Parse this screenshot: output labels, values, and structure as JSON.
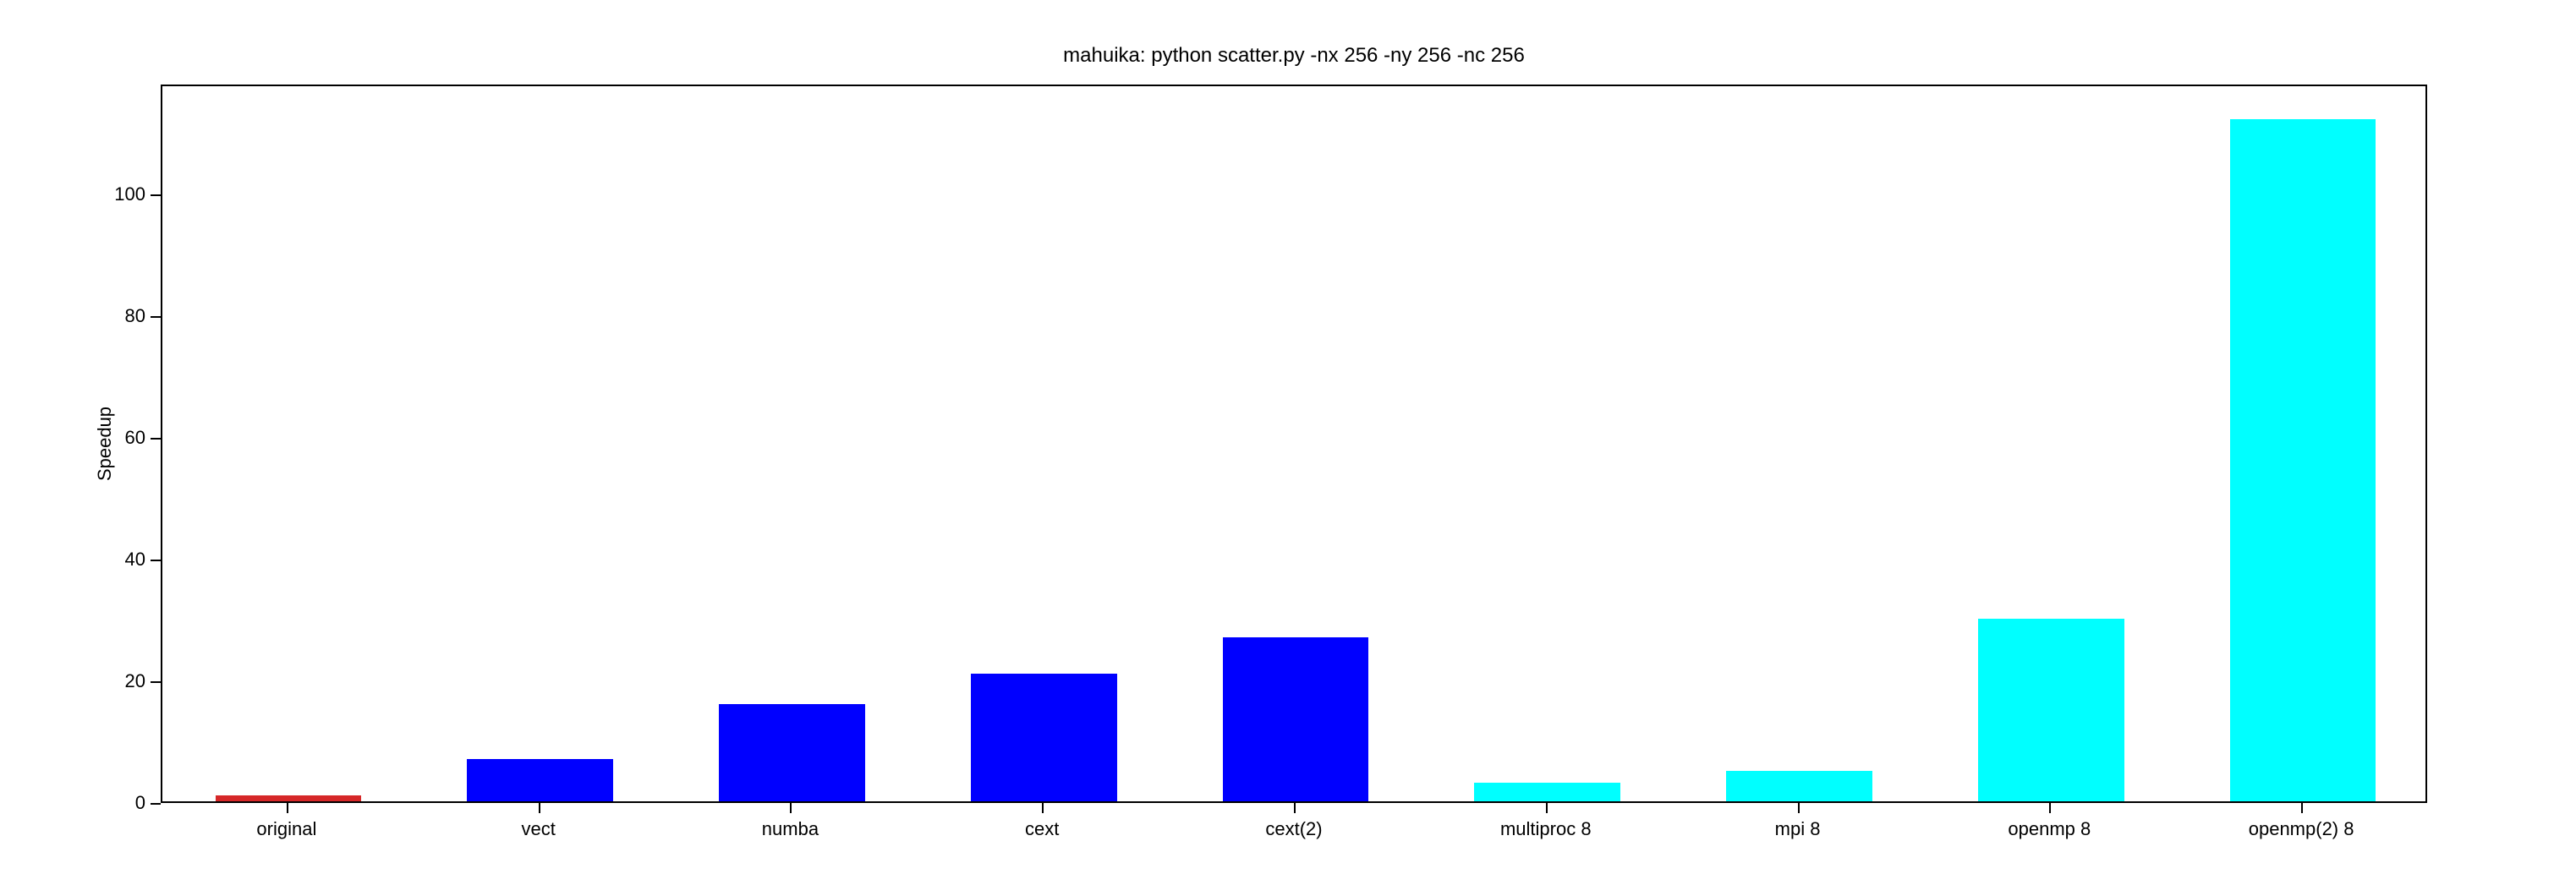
{
  "chart": {
    "type": "bar",
    "title": "mahuika: python scatter.py -nx 256 -ny 256 -nc 256",
    "title_fontsize": 24,
    "ylabel": "Speedup",
    "ylabel_fontsize": 22,
    "categories": [
      "original",
      "vect",
      "numba",
      "cext",
      "cext(2)",
      "multiproc 8",
      "mpi 8",
      "openmp 8",
      "openmp(2) 8"
    ],
    "values": [
      1,
      7,
      16,
      21,
      27,
      3,
      5,
      30,
      112
    ],
    "bar_colors": [
      "#d62728",
      "#0000ff",
      "#0000ff",
      "#0000ff",
      "#0000ff",
      "#00ffff",
      "#00ffff",
      "#00ffff",
      "#00ffff"
    ],
    "ylim": [
      0,
      118
    ],
    "yticks": [
      0,
      20,
      40,
      60,
      80,
      100
    ],
    "bar_width": 0.58,
    "background_color": "#ffffff",
    "border_color": "#000000",
    "tick_fontsize": 22,
    "text_color": "#000000"
  }
}
